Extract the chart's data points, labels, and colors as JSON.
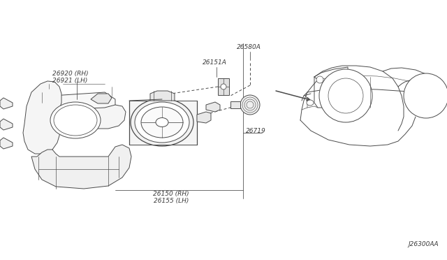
{
  "bg_color": "#ffffff",
  "line_color": "#4a4a4a",
  "text_color": "#3a3a3a",
  "diagram_code": "J26300AA",
  "labels": {
    "26920_RH": "26920 (RH)",
    "26921_LH": "26921 (LH)",
    "26580A": "26580A",
    "26151A": "26151A",
    "26719": "26719",
    "26150_RH": "26150 (RH)",
    "26155_LH": "26155 (LH)"
  },
  "font_size": 6.5,
  "lw": 0.7
}
